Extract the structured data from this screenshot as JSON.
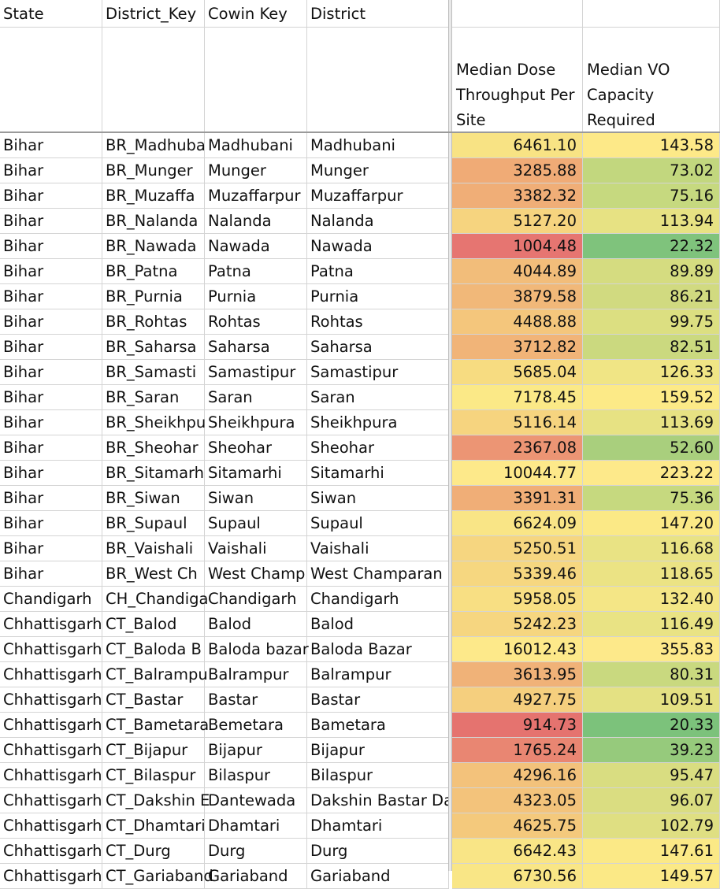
{
  "headers": {
    "state": "State",
    "district_key": "District_Key",
    "cowin_key": "Cowin Key",
    "district": "District",
    "median_dose": "Median Dose Throughput Per Site",
    "median_vo": "Median VO Capacity Required"
  },
  "rows": [
    {
      "state": "Bihar",
      "district_key": "BR_Madhuba",
      "cowin_key": "Madhubani",
      "district": "Madhubani",
      "dose": "6461.10",
      "vo": "143.58",
      "dose_fill": "#f8e384",
      "vo_fill": "#fde988"
    },
    {
      "state": "Bihar",
      "district_key": "BR_Munger",
      "cowin_key": "Munger",
      "district": "Munger",
      "dose": "3285.88",
      "vo": "73.02",
      "dose_fill": "#f0ab76",
      "vo_fill": "#c2d77e"
    },
    {
      "state": "Bihar",
      "district_key": "BR_Muzaffa",
      "cowin_key": "Muzaffarpur",
      "district": "Muzaffarpur",
      "dose": "3382.32",
      "vo": "75.16",
      "dose_fill": "#f0ae77",
      "vo_fill": "#c6d97f"
    },
    {
      "state": "Bihar",
      "district_key": "BR_Nalanda",
      "cowin_key": "Nalanda",
      "district": "Nalanda",
      "dose": "5127.20",
      "vo": "113.94",
      "dose_fill": "#f6d47f",
      "vo_fill": "#e7e283"
    },
    {
      "state": "Bihar",
      "district_key": "BR_Nawada",
      "cowin_key": "Nawada",
      "district": "Nawada",
      "dose": "1004.48",
      "vo": "22.32",
      "dose_fill": "#e67571",
      "vo_fill": "#7fc37c"
    },
    {
      "state": "Bihar",
      "district_key": "BR_Patna",
      "cowin_key": "Patna",
      "district": "Patna",
      "dose": "4044.89",
      "vo": "89.89",
      "dose_fill": "#f2bd7a",
      "vo_fill": "#d5dc80"
    },
    {
      "state": "Bihar",
      "district_key": "BR_Purnia",
      "cowin_key": "Purnia",
      "district": "Purnia",
      "dose": "3879.58",
      "vo": "86.21",
      "dose_fill": "#f1b879",
      "vo_fill": "#d1da80"
    },
    {
      "state": "Bihar",
      "district_key": "BR_Rohtas",
      "cowin_key": "Rohtas",
      "district": "Rohtas",
      "dose": "4488.88",
      "vo": "99.75",
      "dose_fill": "#f4c67c",
      "vo_fill": "#dcdf81"
    },
    {
      "state": "Bihar",
      "district_key": "BR_Saharsa",
      "cowin_key": "Saharsa",
      "district": "Saharsa",
      "dose": "3712.82",
      "vo": "82.51",
      "dose_fill": "#f1b478",
      "vo_fill": "#cbd97f"
    },
    {
      "state": "Bihar",
      "district_key": "BR_Samasti",
      "cowin_key": "Samastipur",
      "district": "Samastipur",
      "dose": "5685.04",
      "vo": "126.33",
      "dose_fill": "#f7dc81",
      "vo_fill": "#f0e585"
    },
    {
      "state": "Bihar",
      "district_key": "BR_Saran",
      "cowin_key": "Saran",
      "district": "Saran",
      "dose": "7178.45",
      "vo": "159.52",
      "dose_fill": "#fbe987",
      "vo_fill": "#fcea87"
    },
    {
      "state": "Bihar",
      "district_key": "BR_Sheikhpu",
      "cowin_key": "Sheikhpura",
      "district": "Sheikhpura",
      "dose": "5116.14",
      "vo": "113.69",
      "dose_fill": "#f6d47f",
      "vo_fill": "#e7e283"
    },
    {
      "state": "Bihar",
      "district_key": "BR_Sheohar",
      "cowin_key": "Sheohar",
      "district": "Sheohar",
      "dose": "2367.08",
      "vo": "52.60",
      "dose_fill": "#ec9574",
      "vo_fill": "#a9cf7d"
    },
    {
      "state": "Bihar",
      "district_key": "BR_Sitamarh",
      "cowin_key": "Sitamarhi",
      "district": "Sitamarhi",
      "dose": "10044.77",
      "vo": "223.22",
      "dose_fill": "#fde98a",
      "vo_fill": "#fde98a"
    },
    {
      "state": "Bihar",
      "district_key": "BR_Siwan",
      "cowin_key": "Siwan",
      "district": "Siwan",
      "dose": "3391.31",
      "vo": "75.36",
      "dose_fill": "#f0ae77",
      "vo_fill": "#c6d97f"
    },
    {
      "state": "Bihar",
      "district_key": "BR_Supaul",
      "cowin_key": "Supaul",
      "district": "Supaul",
      "dose": "6624.09",
      "vo": "147.20",
      "dose_fill": "#f9e586",
      "vo_fill": "#fbe986"
    },
    {
      "state": "Bihar",
      "district_key": "BR_Vaishali",
      "cowin_key": "Vaishali",
      "district": "Vaishali",
      "dose": "5250.51",
      "vo": "116.68",
      "dose_fill": "#f6d680",
      "vo_fill": "#e9e384"
    },
    {
      "state": "Bihar",
      "district_key": "BR_West Ch",
      "cowin_key": "West Champ",
      "district": "West Champaran",
      "dose": "5339.46",
      "vo": "118.65",
      "dose_fill": "#f6d780",
      "vo_fill": "#ebe384"
    },
    {
      "state": "Chandigarh",
      "district_key": "CH_Chandiga",
      "cowin_key": "Chandigarh",
      "district": "Chandigarh",
      "dose": "5958.05",
      "vo": "132.40",
      "dose_fill": "#f8df83",
      "vo_fill": "#f4e686"
    },
    {
      "state": "Chhattisgarh",
      "district_key": "CT_Balod",
      "cowin_key": "Balod",
      "district": "Balod",
      "dose": "5242.23",
      "vo": "116.49",
      "dose_fill": "#f6d680",
      "vo_fill": "#e9e384"
    },
    {
      "state": "Chhattisgarh",
      "district_key": "CT_Baloda B",
      "cowin_key": "Baloda bazar",
      "district": "Baloda Bazar",
      "dose": "16012.43",
      "vo": "355.83",
      "dose_fill": "#fde98a",
      "vo_fill": "#fde98a"
    },
    {
      "state": "Chhattisgarh",
      "district_key": "CT_Balrampu",
      "cowin_key": "Balrampur",
      "district": "Balrampur",
      "dose": "3613.95",
      "vo": "80.31",
      "dose_fill": "#f0b278",
      "vo_fill": "#c9d97f"
    },
    {
      "state": "Chhattisgarh",
      "district_key": "CT_Bastar",
      "cowin_key": "Bastar",
      "district": "Bastar",
      "dose": "4927.75",
      "vo": "109.51",
      "dose_fill": "#f5cf7e",
      "vo_fill": "#e4e183"
    },
    {
      "state": "Chhattisgarh",
      "district_key": "CT_Bametara",
      "cowin_key": "Bemetara",
      "district": "Bametara",
      "dose": "914.73",
      "vo": "20.33",
      "dose_fill": "#e5736f",
      "vo_fill": "#7cc27b"
    },
    {
      "state": "Chhattisgarh",
      "district_key": "CT_Bijapur",
      "cowin_key": "Bijapur",
      "district": "Bijapur",
      "dose": "1765.24",
      "vo": "39.23",
      "dose_fill": "#e98672",
      "vo_fill": "#96ca7c"
    },
    {
      "state": "Chhattisgarh",
      "district_key": "CT_Bilaspur",
      "cowin_key": "Bilaspur",
      "district": "Bilaspur",
      "dose": "4296.16",
      "vo": "95.47",
      "dose_fill": "#f3c27b",
      "vo_fill": "#d9dd81"
    },
    {
      "state": "Chhattisgarh",
      "district_key": "CT_Dakshin E",
      "cowin_key": "Dantewada",
      "district": "Dakshin Bastar Da",
      "dose": "4323.05",
      "vo": "96.07",
      "dose_fill": "#f3c37b",
      "vo_fill": "#dadd81"
    },
    {
      "state": "Chhattisgarh",
      "district_key": "CT_Dhamtari",
      "cowin_key": "Dhamtari",
      "district": "Dhamtari",
      "dose": "4625.75",
      "vo": "102.79",
      "dose_fill": "#f4c97c",
      "vo_fill": "#dfdf82"
    },
    {
      "state": "Chhattisgarh",
      "district_key": "CT_Durg",
      "cowin_key": "Durg",
      "district": "Durg",
      "dose": "6642.43",
      "vo": "147.61",
      "dose_fill": "#f9e586",
      "vo_fill": "#fbe986"
    },
    {
      "state": "Chhattisgarh",
      "district_key": "CT_Gariaband",
      "cowin_key": "Gariaband",
      "district": "Gariaband",
      "dose": "6730.56",
      "vo": "149.57",
      "dose_fill": "#f9e686",
      "vo_fill": "#fbe986"
    }
  ]
}
